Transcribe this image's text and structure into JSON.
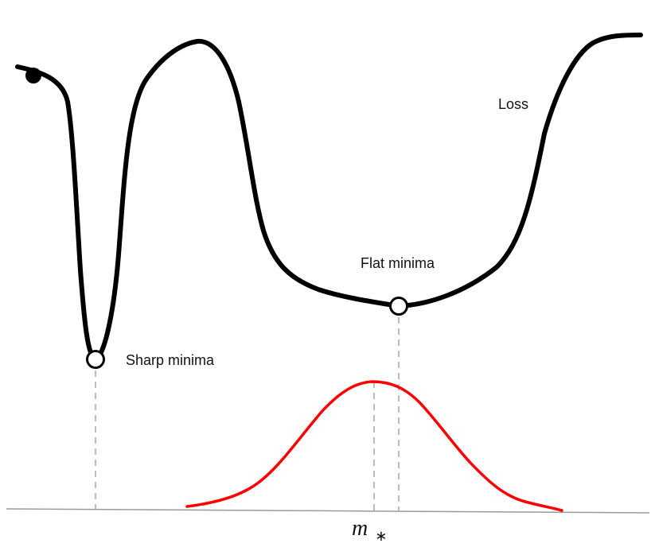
{
  "labels": {
    "loss": "Loss",
    "flat_minima": "Flat minima",
    "sharp_minima": "Sharp minima",
    "m_star_main": "m",
    "m_star_sub": "∗"
  },
  "colors": {
    "loss_curve": "#000000",
    "distribution_curve": "#ff0000",
    "guide_lines": "#bdbdbd",
    "axis_line": "#9a9a9a",
    "marker_fill": "#ffffff",
    "start_marker": "#000000"
  }
}
